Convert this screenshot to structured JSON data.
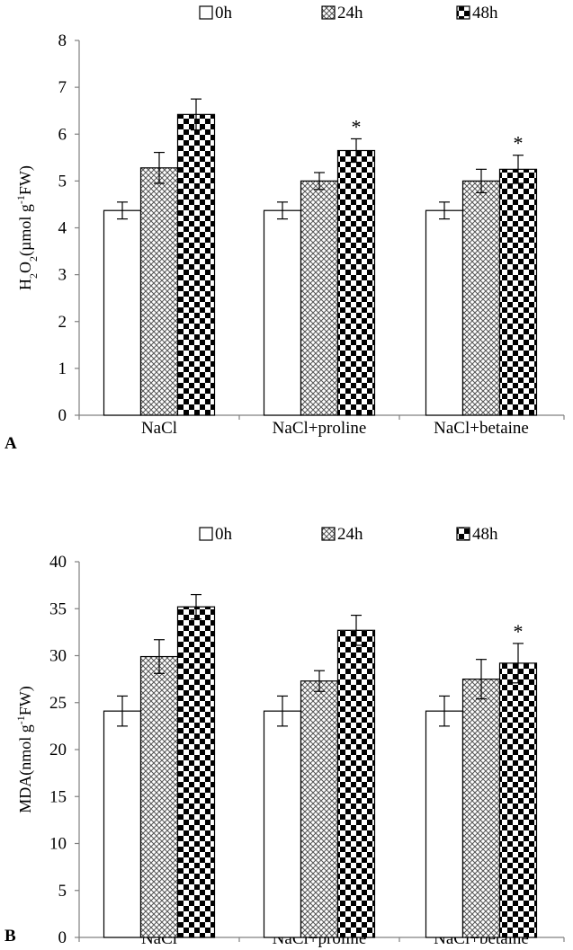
{
  "chart_data": [
    {
      "type": "bar",
      "panel_label": "A",
      "ylabel_parts": {
        "main": "H",
        "sub1": "2",
        "mid": "O",
        "sub2": "2",
        "unit_a": "(µmol g",
        "sup": "-1",
        "unit_b": "FW)"
      },
      "categories": [
        "NaCl",
        "NaCl+proline",
        "NaCl+betaine"
      ],
      "ylim": [
        0,
        8
      ],
      "yticks": [
        0,
        1,
        2,
        3,
        4,
        5,
        6,
        7,
        8
      ],
      "legend_position": "top",
      "grid": false,
      "series": [
        {
          "name": "0h",
          "values": [
            4.37,
            4.37,
            4.37
          ],
          "errors": [
            0.18,
            0.18,
            0.18
          ],
          "significant": [
            false,
            false,
            false
          ]
        },
        {
          "name": "24h",
          "values": [
            5.28,
            5.0,
            5.0
          ],
          "errors": [
            0.33,
            0.18,
            0.25
          ],
          "significant": [
            false,
            false,
            false
          ]
        },
        {
          "name": "48h",
          "values": [
            6.42,
            5.65,
            5.25
          ],
          "errors": [
            0.33,
            0.25,
            0.3
          ],
          "significant": [
            false,
            true,
            true
          ]
        }
      ],
      "significance_symbol": "*"
    },
    {
      "type": "bar",
      "panel_label": "B",
      "ylabel_parts": {
        "main": "MDA",
        "unit_a": "(nmol g",
        "sup": "-1",
        "unit_b": "FW)"
      },
      "categories": [
        "NaCl",
        "NaCl+proline",
        "NaCl+betaine"
      ],
      "ylim": [
        0,
        40
      ],
      "yticks": [
        0,
        5,
        10,
        15,
        20,
        25,
        30,
        35,
        40
      ],
      "legend_position": "top",
      "grid": false,
      "series": [
        {
          "name": "0h",
          "values": [
            24.1,
            24.1,
            24.1
          ],
          "errors": [
            1.6,
            1.6,
            1.6
          ],
          "significant": [
            false,
            false,
            false
          ]
        },
        {
          "name": "24h",
          "values": [
            29.9,
            27.3,
            27.5
          ],
          "errors": [
            1.8,
            1.1,
            2.1
          ],
          "significant": [
            false,
            false,
            false
          ]
        },
        {
          "name": "48h",
          "values": [
            35.2,
            32.7,
            29.2
          ],
          "errors": [
            1.3,
            1.6,
            2.1
          ],
          "significant": [
            false,
            false,
            true
          ]
        }
      ],
      "significance_symbol": "*"
    }
  ]
}
